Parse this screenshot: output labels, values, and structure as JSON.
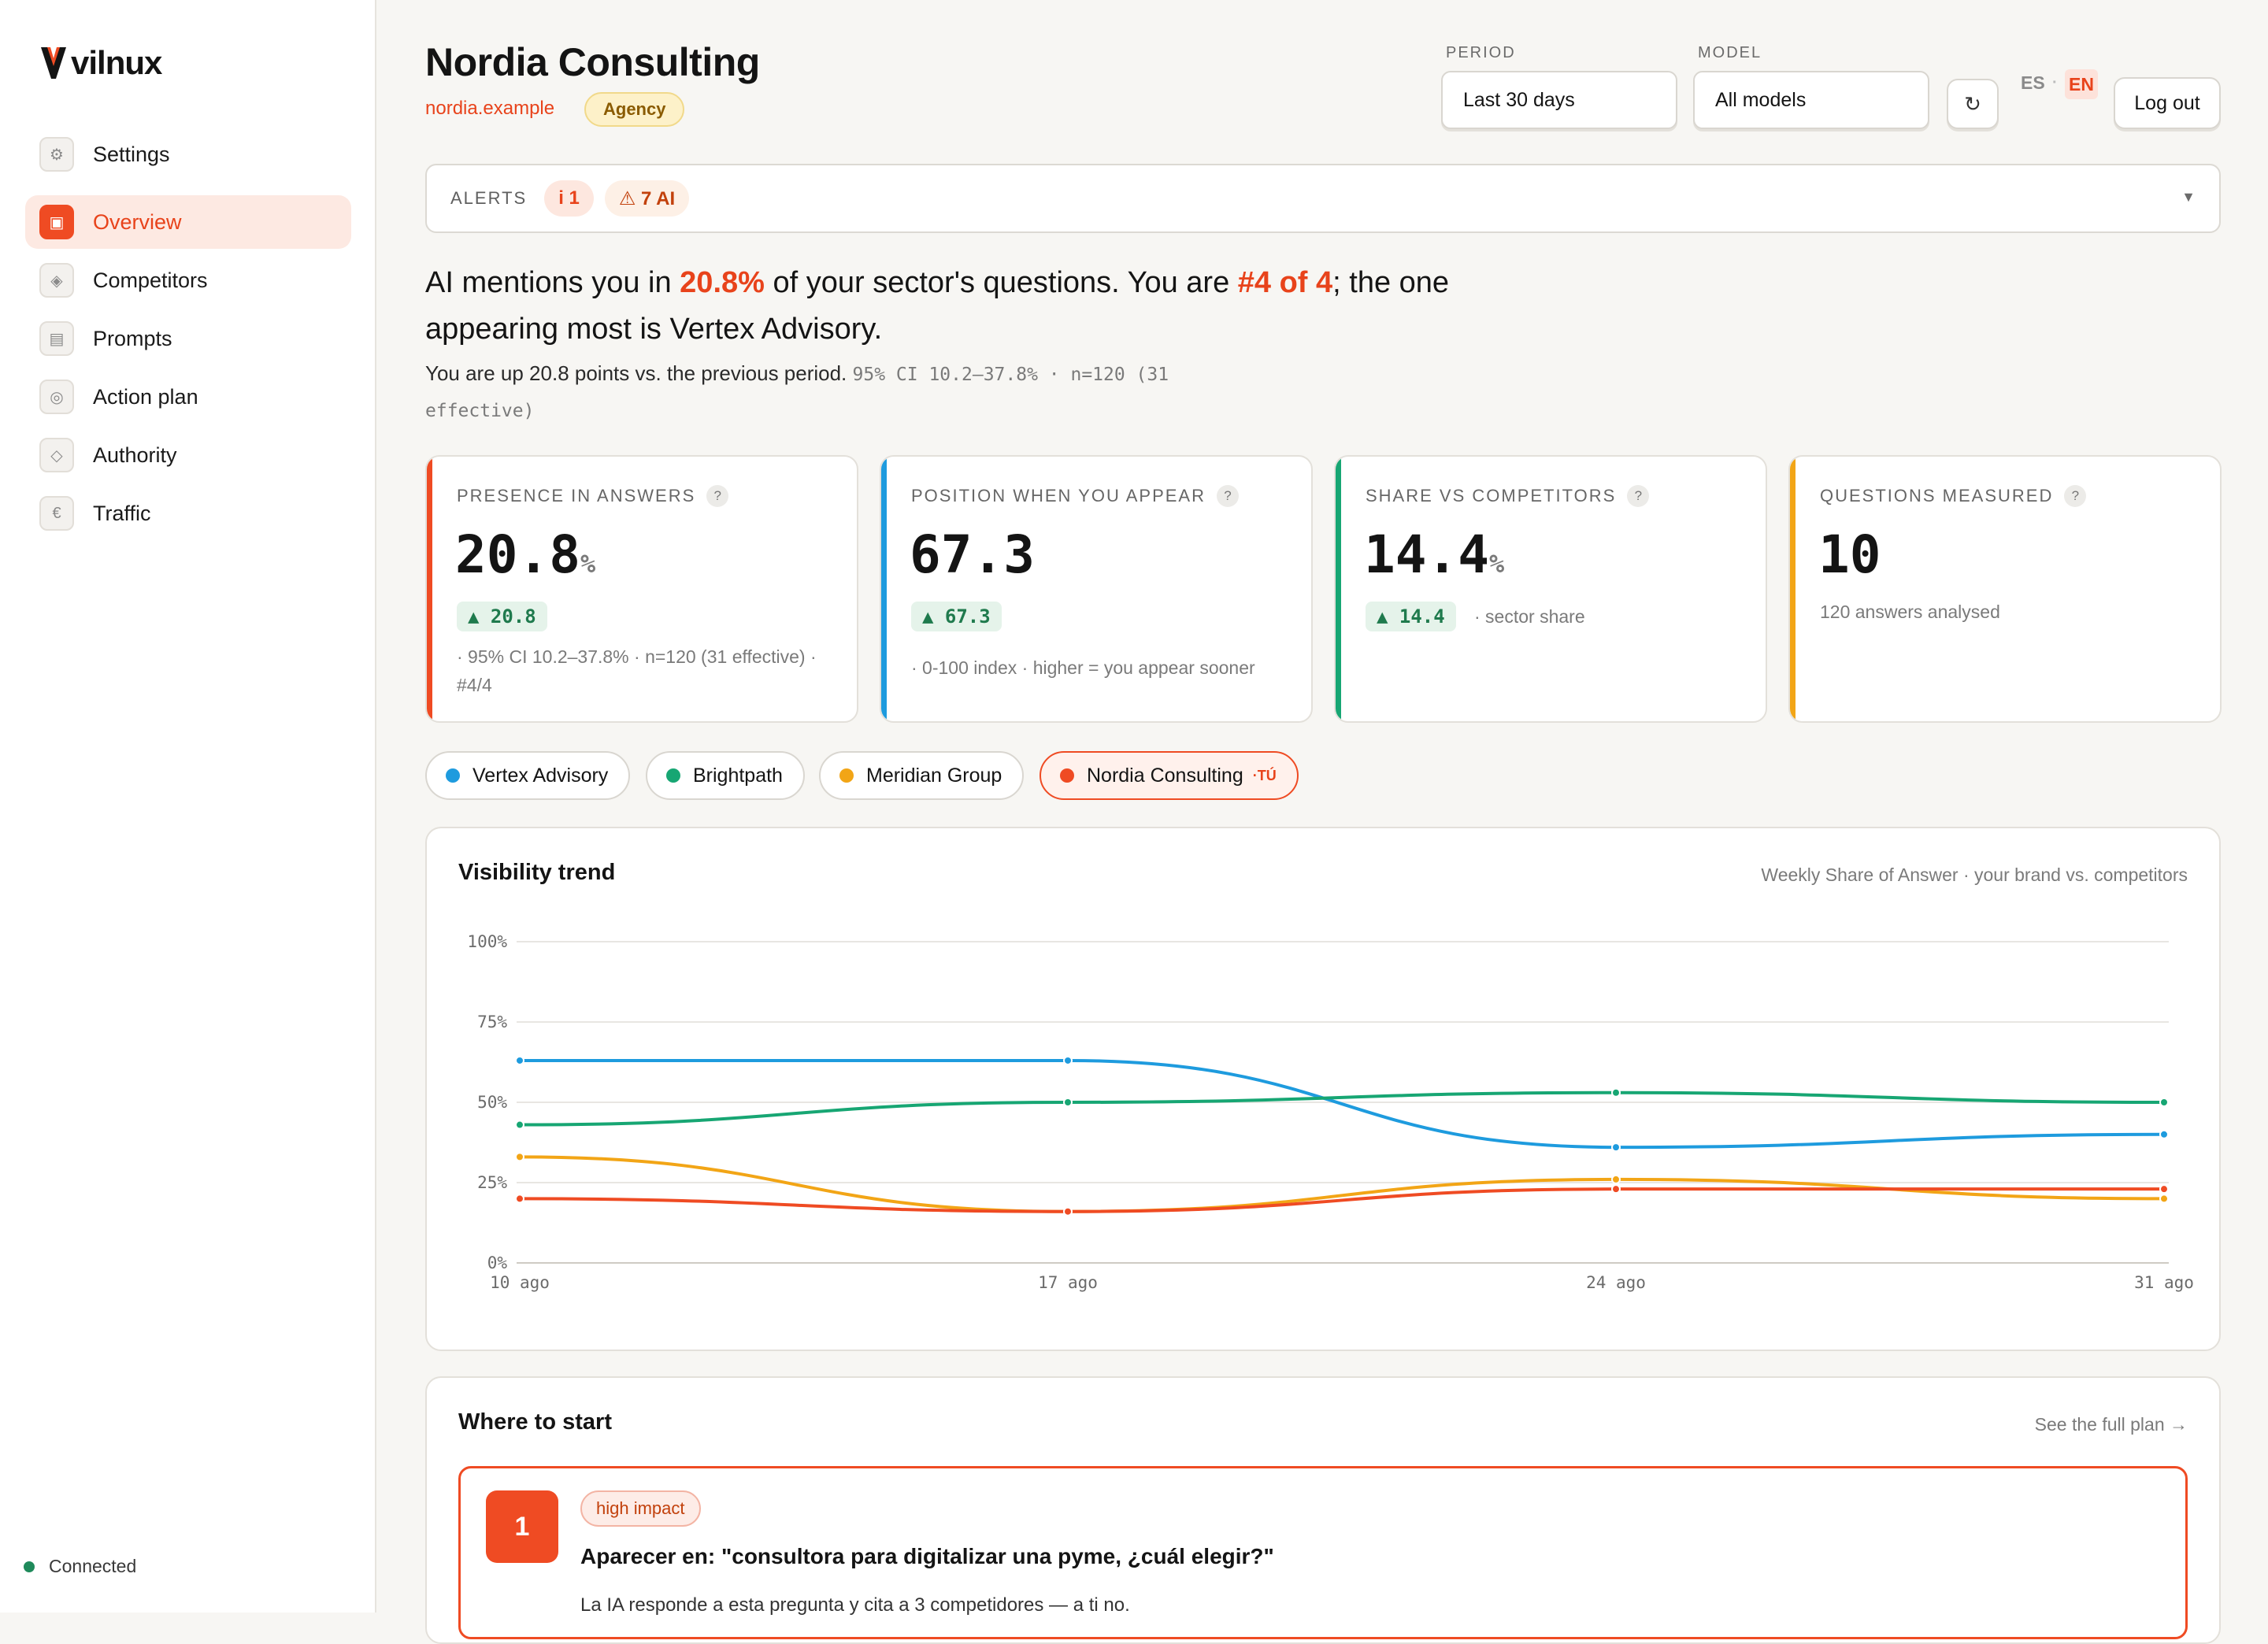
{
  "app": {
    "brand": "vilnux"
  },
  "sidebar": {
    "items": [
      {
        "label": "Settings",
        "icon": "gear-icon",
        "active": false
      },
      {
        "label": "Overview",
        "icon": "overview-icon",
        "active": true
      },
      {
        "label": "Competitors",
        "icon": "diamond-icon",
        "active": false
      },
      {
        "label": "Prompts",
        "icon": "list-icon",
        "active": false
      },
      {
        "label": "Action plan",
        "icon": "target-icon",
        "active": false
      },
      {
        "label": "Authority",
        "icon": "diamond-outline-icon",
        "active": false
      },
      {
        "label": "Traffic",
        "icon": "euro-icon",
        "active": false
      }
    ],
    "status": "Connected"
  },
  "header": {
    "title": "Nordia Consulting",
    "domain": "nordia.example",
    "badge": "Agency",
    "period_label": "PERIOD",
    "period_value": "Last 30 days",
    "model_label": "MODEL",
    "model_value": "All models",
    "lang_es": "ES",
    "lang_sep": "·",
    "lang_en": "EN",
    "logout": "Log out"
  },
  "alerts": {
    "label": "ALERTS",
    "info": "i 1",
    "warn": "⚠ 7 AI"
  },
  "headline": {
    "p1": "AI mentions you in ",
    "pct": "20.8%",
    "p2": " of your sector's questions. You are ",
    "rank": "#4 of 4",
    "p3": "; the one appearing most is Vertex Advisory.",
    "sub": "You are up 20.8 points vs. the previous period.",
    "stats": "95% CI 10.2–37.8% · n=120 (31 effective)"
  },
  "kpis": [
    {
      "label": "PRESENCE IN ANSWERS",
      "value": "20.8",
      "unit": "%",
      "delta": "▲ 20.8",
      "note": "· 95% CI 10.2–37.8% · n=120 (31 effective) · #4/4",
      "color": "#ef4b23"
    },
    {
      "label": "POSITION WHEN YOU APPEAR",
      "value": "67.3",
      "unit": "",
      "delta": "▲ 67.3",
      "note": "· 0-100 index · higher = you appear sooner",
      "color": "#1e9bde"
    },
    {
      "label": "SHARE VS COMPETITORS",
      "value": "14.4",
      "unit": "%",
      "delta": "▲ 14.4",
      "inline": "· sector share",
      "color": "#17a673"
    },
    {
      "label": "QUESTIONS MEASURED",
      "value": "10",
      "unit": "",
      "note": "120 answers analysed",
      "color": "#f2a516"
    }
  ],
  "competitors": [
    {
      "name": "Vertex Advisory",
      "color": "#1e9bde"
    },
    {
      "name": "Brightpath",
      "color": "#17a673"
    },
    {
      "name": "Meridian Group",
      "color": "#f2a516"
    },
    {
      "name": "Nordia Consulting",
      "color": "#ef4b23",
      "tag": "·TÚ"
    }
  ],
  "trend": {
    "title": "Visibility trend",
    "subtitle": "Weekly Share of Answer · your brand vs. competitors"
  },
  "chart_data": {
    "type": "line",
    "title": "Visibility trend",
    "subtitle": "Weekly Share of Answer · your brand vs. competitors",
    "x": [
      "10 ago",
      "17 ago",
      "24 ago",
      "31 ago"
    ],
    "ylim": [
      0,
      100
    ],
    "yticks": [
      "0%",
      "25%",
      "50%",
      "75%",
      "100%"
    ],
    "grid": true,
    "series": [
      {
        "name": "Vertex Advisory",
        "color": "#1e9bde",
        "values": [
          63,
          63,
          36,
          40
        ]
      },
      {
        "name": "Brightpath",
        "color": "#17a673",
        "values": [
          43,
          50,
          53,
          50
        ]
      },
      {
        "name": "Meridian Group",
        "color": "#f2a516",
        "values": [
          33,
          16,
          26,
          20
        ]
      },
      {
        "name": "Nordia Consulting",
        "color": "#ef4b23",
        "values": [
          20,
          16,
          23,
          23
        ]
      }
    ]
  },
  "start": {
    "title": "Where to start",
    "link": "See the full plan →",
    "rec_num": "1",
    "rec_badge": "high impact",
    "rec_title": "Aparecer en: \"consultora para digitalizar una pyme, ¿cuál elegir?\"",
    "rec_desc": "La IA responde a esta pregunta y cita a 3 competidores — a ti no."
  }
}
